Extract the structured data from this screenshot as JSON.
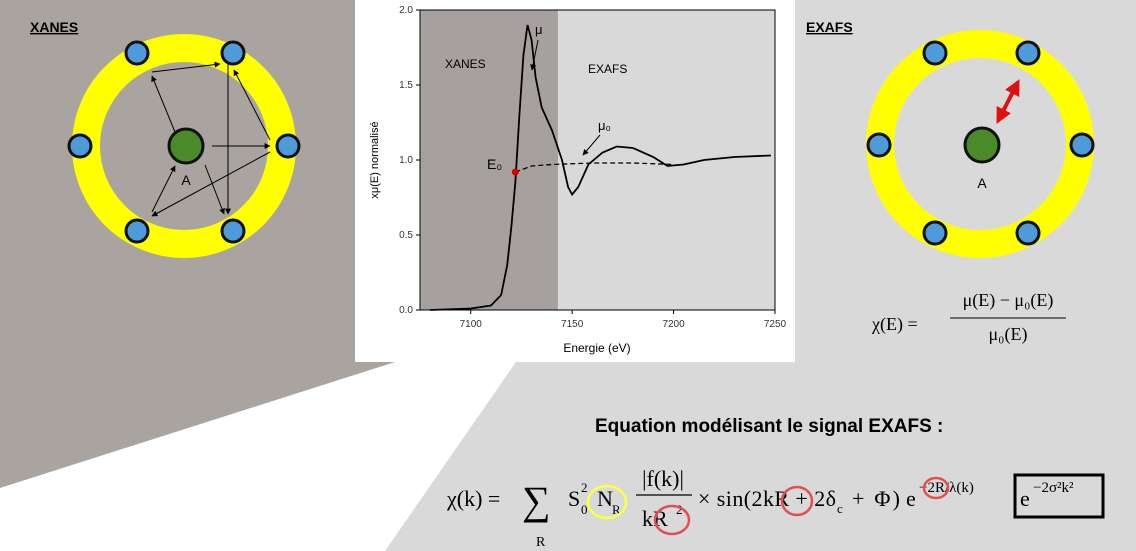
{
  "headings": {
    "left": "XANES",
    "right": "EXAFS"
  },
  "atom_labels": {
    "left": "A",
    "right": "A"
  },
  "chart_data": {
    "type": "line",
    "xlabel": "Energie (eV)",
    "ylabel": "xμ(E) normalisé",
    "xlim": [
      7075,
      7250
    ],
    "ylim": [
      0,
      2
    ],
    "xticks": [
      7100,
      7150,
      7200,
      7250
    ],
    "yticks": [
      {
        "value": 0,
        "label": "0.0"
      },
      {
        "value": 0.5,
        "label": "0.5"
      },
      {
        "value": 1,
        "label": "1.0"
      },
      {
        "value": 1.5,
        "label": "1.5"
      },
      {
        "value": 2,
        "label": "2.0"
      }
    ],
    "shaded_xlim": [
      7075,
      7143
    ],
    "shade_color": "#a6a19f",
    "annotations": {
      "xanes": "XANES",
      "exafs": "EXAFS",
      "mu": "μ",
      "mu0": "μ₀",
      "e0": "E₀"
    },
    "series": [
      {
        "color": "#000000",
        "dash": false,
        "x": [
          7080,
          7100,
          7110,
          7115,
          7118,
          7120,
          7122,
          7124,
          7126,
          7128,
          7130,
          7132,
          7135,
          7140,
          7145,
          7148,
          7150,
          7153,
          7158,
          7165,
          7172,
          7180,
          7190,
          7197,
          7205,
          7215,
          7230,
          7248
        ],
        "values": [
          0.0,
          0.01,
          0.03,
          0.1,
          0.3,
          0.55,
          0.85,
          1.3,
          1.7,
          1.9,
          1.8,
          1.55,
          1.35,
          1.2,
          1.0,
          0.82,
          0.77,
          0.82,
          0.97,
          1.05,
          1.09,
          1.08,
          1.02,
          0.96,
          0.97,
          1.0,
          1.02,
          1.03
        ]
      },
      {
        "color": "#000000",
        "dash": true,
        "x": [
          7122,
          7130,
          7140,
          7160,
          7180,
          7200
        ],
        "values": [
          0.92,
          0.96,
          0.97,
          0.98,
          0.98,
          0.97
        ]
      }
    ],
    "points": [
      {
        "x": 7122,
        "y": 0.92,
        "color": "#cc0000"
      }
    ]
  },
  "chi_e": {
    "lhs": "χ(E) =",
    "numerator": "μ(E) − μ₀(E)",
    "denominator": "μ₀(E)"
  },
  "equation_title": "Equation modélisant le signal EXAFS :",
  "equation": {
    "lhs": "χ(k) =",
    "sum": "∑",
    "sum_index": "R",
    "s": "S",
    "s_sub": "0",
    "s_sup": "2",
    "n": "N",
    "n_sub": "R",
    "frac_num": "|f(k)|",
    "frac_den": "kR",
    "frac_den_sup": "2",
    "sin": "× sin(2kR + 2δ",
    "delta_sub": "c",
    "phi": "+ Φ)",
    "e1": "e",
    "e1_sup": "−2R/λ(k)",
    "e2": "e",
    "e2_sup": "−2σ²k²"
  }
}
